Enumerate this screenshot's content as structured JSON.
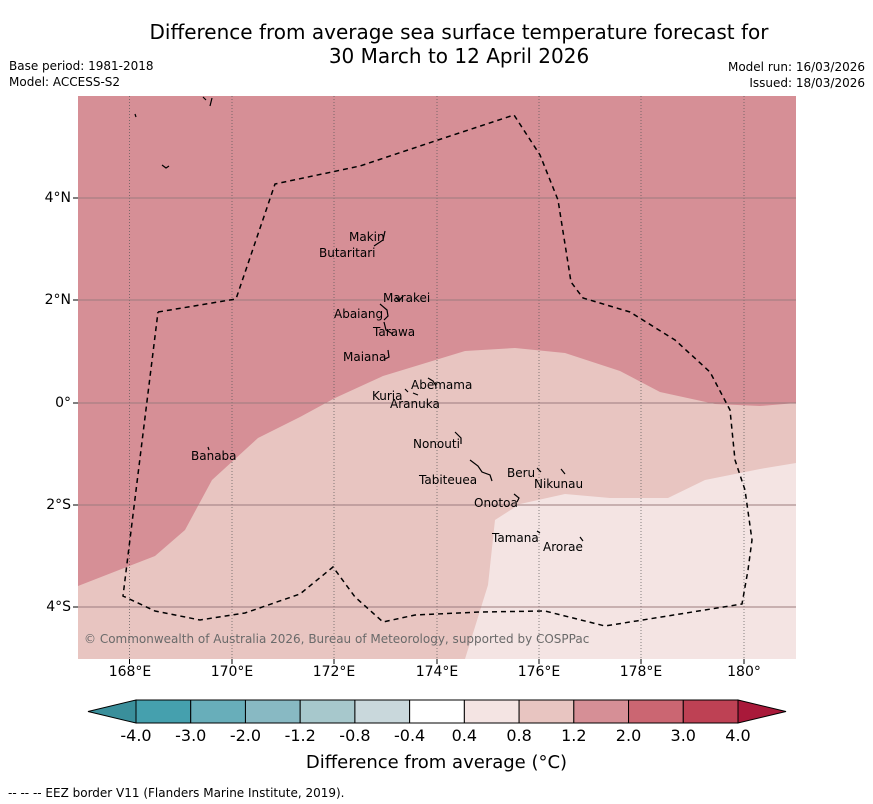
{
  "title_line1": "Difference from average sea surface temperature forecast for",
  "title_line2": "30 March to 12 April 2026",
  "base_period": "Base period: 1981-2018",
  "model": "Model: ACCESS-S2",
  "model_run": "Model run: 16/03/2026",
  "issued": "Issued: 18/03/2026",
  "copyright": "© Commonwealth of Australia 2026, Bureau of Meteorology, supported by COSPPac",
  "footer": "-- -- -- EEZ border V11 (Flanders Marine Institute, 2019).",
  "axes": {
    "lat_labels": [
      "4°N",
      "2°N",
      "0°",
      "2°S",
      "4°S"
    ],
    "lon_labels": [
      "168°E",
      "170°E",
      "172°E",
      "174°E",
      "176°E",
      "178°E",
      "180°"
    ]
  },
  "islands": {
    "makin": "Makin",
    "butaritari": "Butaritari",
    "marakei": "Marakei",
    "abaiang": "Abaiang",
    "tarawa": "Tarawa",
    "maiana": "Maiana",
    "abemama": "Abemama",
    "kuria": "Kuria",
    "aranuka": "Aranuka",
    "banaba": "Banaba",
    "nonouti": "Nonouti",
    "tabiteuea": "Tabiteuea",
    "beru": "Beru",
    "nikunau": "Nikunau",
    "onotoa": "Onotoa",
    "tamana": "Tamana",
    "arorae": "Arorae"
  },
  "colorbar": {
    "label": "Difference from average (",
    "label_unit": "°C",
    "label_end": ")",
    "ticks": [
      "-4.0",
      "-3.0",
      "-2.0",
      "-1.2",
      "-0.8",
      "-0.4",
      "0.4",
      "0.8",
      "1.2",
      "2.0",
      "3.0",
      "4.0"
    ],
    "colors": [
      "#3a8f9b",
      "#45a0ae",
      "#68aeba",
      "#88b9c3",
      "#a7c8cc",
      "#c9d8dc",
      "#ffffff",
      "#f4e4e3",
      "#e8c5c1",
      "#d68f96",
      "#cb6672",
      "#be4154",
      "#a9193a"
    ]
  },
  "map_colors": {
    "band_2_0": "#d68f96",
    "band_1_2": "#e8c5c1",
    "band_0_8": "#f4e4e3"
  }
}
